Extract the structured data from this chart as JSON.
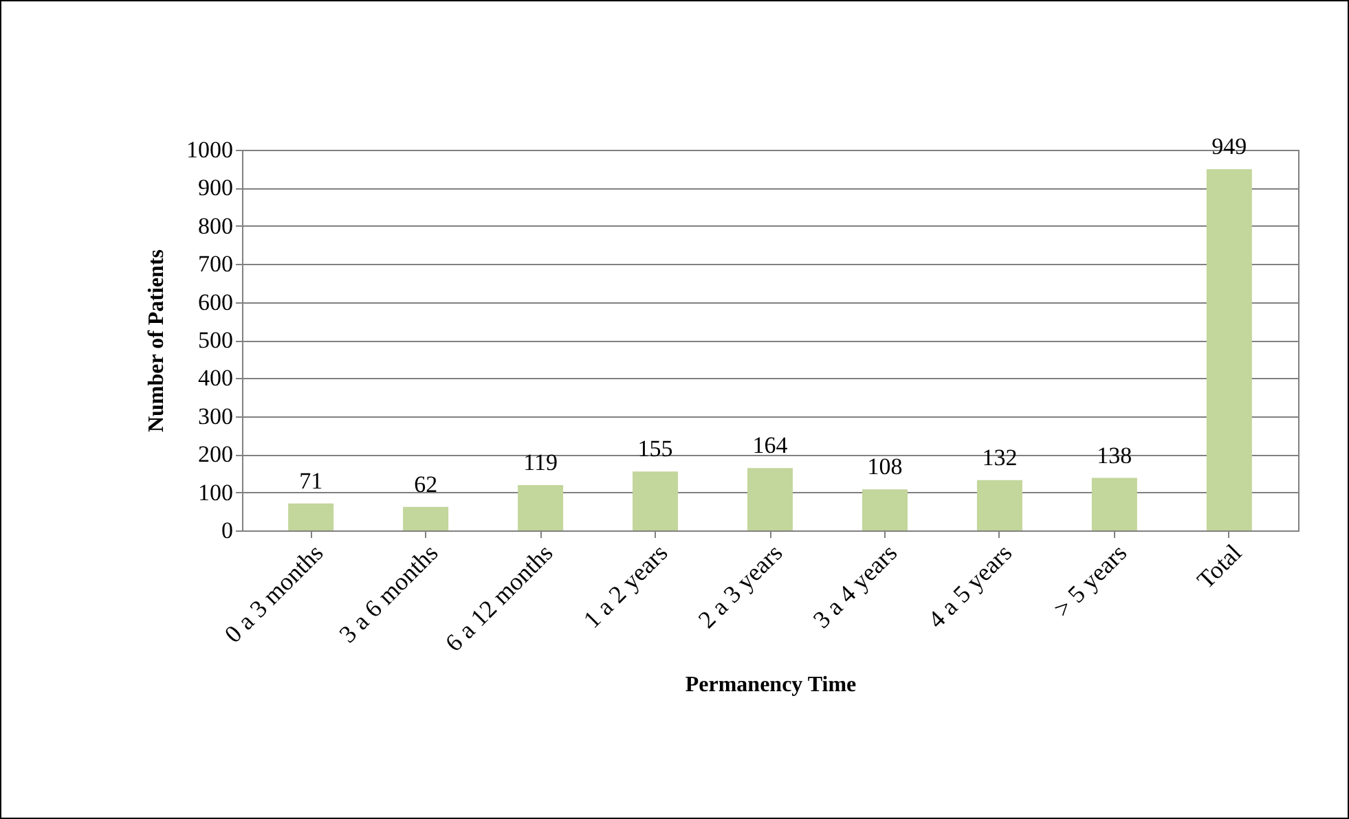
{
  "chart_data": {
    "type": "bar",
    "xlabel": "Permanency Time",
    "ylabel": "Number of Patients",
    "categories": [
      "0 a 3 months",
      "3 a 6 months",
      "6 a 12 months",
      "1 a 2 years",
      "2 a 3 years",
      "3 a 4 years",
      "4 a 5 years",
      "> 5 years",
      "Total"
    ],
    "values": [
      71,
      62,
      119,
      155,
      164,
      108,
      132,
      138,
      949
    ],
    "color": "#c3d69b",
    "ylim": [
      0,
      1000
    ],
    "yticks": [
      0,
      100,
      200,
      300,
      400,
      500,
      600,
      700,
      800,
      900,
      1000
    ],
    "grid": "y",
    "data_labels": true
  }
}
